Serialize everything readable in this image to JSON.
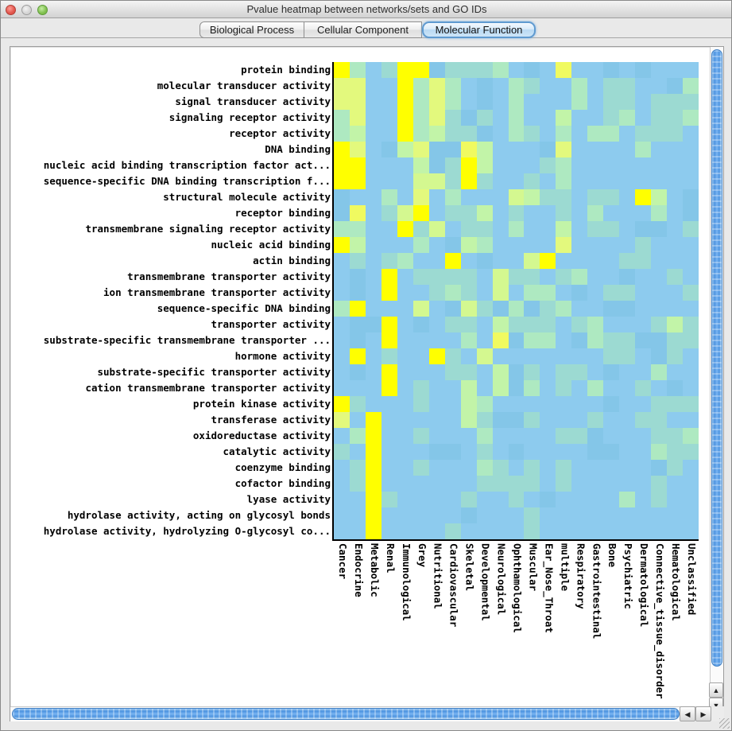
{
  "window": {
    "title": "Pvalue heatmap between networks/sets and GO IDs"
  },
  "traffic_lights": [
    "close",
    "minimize",
    "zoom"
  ],
  "tabs": [
    {
      "label": "Biological Process",
      "selected": false
    },
    {
      "label": "Cellular Component",
      "selected": false
    },
    {
      "label": "Molecular Function",
      "selected": true
    }
  ],
  "scrollbars": {
    "up": "▲",
    "down": "▼",
    "left": "◀",
    "right": "▶"
  },
  "chart_data": {
    "type": "heatmap",
    "rows": [
      "protein binding",
      "molecular transducer activity",
      "signal transducer activity",
      "signaling receptor activity",
      "receptor activity",
      "DNA binding",
      "nucleic acid binding transcription factor act...",
      "sequence-specific DNA binding transcription f...",
      "structural molecule activity",
      "receptor binding",
      "transmembrane signaling receptor activity",
      "nucleic acid binding",
      "actin binding",
      "transmembrane transporter activity",
      "ion transmembrane transporter activity",
      "sequence-specific DNA binding",
      "transporter activity",
      "substrate-specific transmembrane transporter ...",
      "hormone activity",
      "substrate-specific transporter activity",
      "cation transmembrane transporter activity",
      "protein kinase activity",
      "transferase activity",
      "oxidoreductase activity",
      "catalytic activity",
      "coenzyme binding",
      "cofactor binding",
      "lyase activity",
      "hydrolase activity, acting on glycosyl bonds",
      "hydrolase activity, hydrolyzing O-glycosyl co..."
    ],
    "columns": [
      "Cancer",
      "Endocrine",
      "Metabolic",
      "Renal",
      "Immunological",
      "Grey",
      "Nutritional",
      "Cardiovascular",
      "Skeletal",
      "Developmental",
      "Neurological",
      "Ophthamological",
      "Muscular",
      "Ear_Nose_Throat",
      "multiple",
      "Respiratory",
      "Gastrointestinal",
      "Bone",
      "Psychiatric",
      "Dermatological",
      "Connective_tissue_disorder",
      "Hematological",
      "Unclassified"
    ],
    "palette": [
      "#8DCBEE",
      "#84C6E8",
      "#9CDAD2",
      "#AEE9C1",
      "#C2F4A8",
      "#D4F890",
      "#E3F97D",
      "#F0FA60",
      "#FFFF00"
    ],
    "palette_note": "level 0 = low significance (light blue) .. level 8 = high significance (bright yellow)",
    "cells": [
      "83028812223010700101000",
      "66008363010320030220013",
      "66008363010300030220222",
      "36008362120300400230223",
      "34008342210320303302220",
      "86014611740001600003000",
      "88000412840002300000000",
      "88000552820020300000000",
      "10030603000542202208401",
      "17025802240200203000301",
      "33008250220300402201102",
      "84000301430000600002000",
      "02023008010058000022000",
      "01080222205220230010020",
      "01080023205033010220002",
      "38000501521312300110000",
      "01180102204222023000242",
      "01080000307133013221122",
      "08020082050000000220120",
      "01080002204120220100300",
      "00080200404130203002010",
      "82000200430000000100222",
      "60800000421120002002200",
      "03800200030000221000223",
      "20800011020100001100322",
      "02800200032020200000120",
      "02800000022220200000200",
      "00820000200201000030200",
      "00800000100020000000000",
      "00800002000020000000000"
    ]
  }
}
